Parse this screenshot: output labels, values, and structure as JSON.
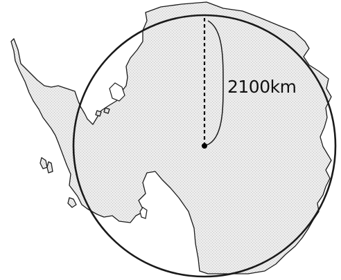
{
  "diagram": {
    "radius_label": "2100km"
  }
}
